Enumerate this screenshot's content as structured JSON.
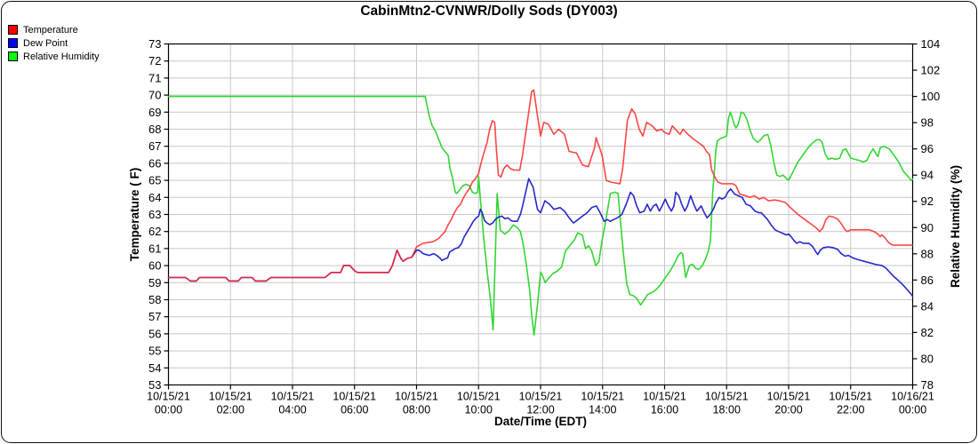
{
  "chart_data": {
    "type": "line",
    "title": "CabinMtn2-CVNWR/Dolly Sods (DY003)",
    "x_axis": {
      "label": "Date/Time (EDT)",
      "unit": "hours_from_start",
      "range": [
        0,
        24
      ],
      "tick_interval_hours": 2,
      "tick_labels": [
        {
          "date": "10/15/21",
          "time": "00:00"
        },
        {
          "date": "10/15/21",
          "time": "02:00"
        },
        {
          "date": "10/15/21",
          "time": "04:00"
        },
        {
          "date": "10/15/21",
          "time": "06:00"
        },
        {
          "date": "10/15/21",
          "time": "08:00"
        },
        {
          "date": "10/15/21",
          "time": "10:00"
        },
        {
          "date": "10/15/21",
          "time": "12:00"
        },
        {
          "date": "10/15/21",
          "time": "14:00"
        },
        {
          "date": "10/15/21",
          "time": "16:00"
        },
        {
          "date": "10/15/21",
          "time": "18:00"
        },
        {
          "date": "10/15/21",
          "time": "20:00"
        },
        {
          "date": "10/15/21",
          "time": "22:00"
        },
        {
          "date": "10/16/21",
          "time": "00:00"
        }
      ]
    },
    "y_left": {
      "label": "Temperature ( F)",
      "range": [
        53,
        73
      ],
      "tick_step": 1,
      "grid": true
    },
    "y_right": {
      "label": "Relative Humidity (%)",
      "range": [
        78,
        104
      ],
      "tick_step": 2,
      "grid": false
    },
    "grid_color": "#c8c8c8",
    "series": [
      {
        "name": "Relative Humidity",
        "axis": "right",
        "color": "#33d633",
        "legend_color": "#00ff00",
        "x": [
          0,
          8.28,
          8.4,
          8.5,
          8.62,
          8.72,
          8.82,
          8.95,
          9.02,
          9.08,
          9.15,
          9.25,
          9.3,
          9.4,
          9.5,
          9.6,
          9.7,
          9.8,
          9.9,
          9.97,
          10.0,
          10.08,
          10.17,
          10.28,
          10.38,
          10.47,
          10.6,
          10.7,
          10.85,
          11.0,
          11.12,
          11.25,
          11.35,
          11.45,
          11.55,
          11.65,
          11.72,
          11.79,
          11.9,
          12.0,
          12.07,
          12.15,
          12.28,
          12.4,
          12.55,
          12.68,
          12.8,
          12.9,
          13.0,
          13.1,
          13.2,
          13.35,
          13.45,
          13.55,
          13.65,
          13.78,
          13.88,
          13.98,
          14.08,
          14.18,
          14.25,
          14.4,
          14.5,
          14.58,
          14.68,
          14.78,
          14.88,
          15.0,
          15.1,
          15.23,
          15.35,
          15.45,
          15.55,
          15.7,
          15.85,
          16.0,
          16.18,
          16.3,
          16.45,
          16.53,
          16.58,
          16.68,
          16.8,
          16.9,
          17.0,
          17.1,
          17.22,
          17.32,
          17.42,
          17.48,
          17.55,
          17.6,
          17.65,
          17.7,
          17.8,
          17.92,
          18.0,
          18.06,
          18.12,
          18.18,
          18.24,
          18.3,
          18.36,
          18.42,
          18.47,
          18.56,
          18.66,
          18.76,
          18.86,
          19.0,
          19.1,
          19.2,
          19.33,
          19.42,
          19.52,
          19.62,
          19.72,
          19.82,
          19.9,
          20.0,
          20.15,
          20.3,
          20.45,
          20.6,
          20.75,
          20.9,
          21.0,
          21.08,
          21.18,
          21.28,
          21.38,
          21.52,
          21.65,
          21.75,
          21.85,
          22.0,
          22.15,
          22.3,
          22.4,
          22.52,
          22.62,
          22.72,
          22.8,
          22.88,
          22.96,
          23.06,
          23.15,
          23.25,
          23.4,
          23.55,
          23.7,
          23.85,
          23.95,
          24.0
        ],
        "y": [
          100,
          100,
          98.6,
          97.8,
          97.3,
          96.7,
          96.1,
          95.7,
          95.5,
          94.5,
          93.9,
          92.7,
          92.6,
          92.9,
          93.2,
          93.3,
          93.2,
          92.7,
          92.6,
          92.7,
          93.9,
          91.6,
          89.1,
          86.6,
          84.6,
          82.2,
          92.6,
          89.8,
          89.5,
          89.8,
          90.2,
          90.0,
          89.7,
          88.6,
          87.0,
          85.2,
          83.2,
          81.8,
          84.1,
          86.6,
          86.3,
          85.8,
          86.2,
          86.5,
          86.7,
          87.0,
          88.2,
          88.5,
          88.8,
          89.1,
          89.6,
          89.4,
          88.4,
          88.6,
          88.2,
          87.1,
          87.4,
          89.0,
          90.2,
          91.6,
          92.6,
          92.7,
          92.6,
          90.4,
          87.8,
          85.7,
          84.9,
          84.8,
          84.6,
          84.1,
          84.5,
          84.9,
          85.0,
          85.2,
          85.6,
          86.1,
          86.7,
          87.2,
          87.9,
          88.1,
          88.0,
          86.2,
          87.1,
          87.2,
          86.9,
          86.8,
          87.1,
          87.6,
          88.3,
          89.0,
          92.7,
          94.1,
          95.8,
          96.6,
          96.8,
          96.9,
          97.0,
          98.3,
          98.8,
          98.4,
          97.9,
          97.6,
          97.8,
          98.3,
          98.8,
          98.7,
          98.2,
          97.4,
          96.8,
          96.5,
          96.7,
          97.0,
          97.1,
          96.3,
          95.0,
          94.0,
          93.9,
          94.0,
          93.8,
          93.6,
          94.3,
          95.0,
          95.5,
          96.0,
          96.4,
          96.7,
          96.7,
          96.5,
          95.6,
          95.2,
          95.3,
          95.2,
          95.3,
          95.9,
          96.0,
          95.3,
          95.2,
          95.1,
          95.0,
          95.1,
          95.6,
          96.0,
          95.7,
          95.4,
          96.1,
          96.2,
          96.1,
          96.0,
          95.5,
          95.0,
          94.3,
          93.9,
          93.6,
          93.7
        ]
      },
      {
        "name": "Dew Point",
        "axis": "left",
        "color": "#2828cc",
        "legend_color": "#0000ff",
        "x": [
          0,
          0.55,
          0.7,
          0.9,
          1.0,
          1.85,
          1.95,
          2.25,
          2.35,
          2.7,
          2.8,
          3.15,
          3.3,
          5.05,
          5.25,
          5.55,
          5.65,
          5.85,
          6.0,
          6.1,
          7.1,
          7.22,
          7.37,
          7.5,
          7.57,
          7.68,
          7.85,
          8.0,
          8.08,
          8.22,
          8.4,
          8.55,
          8.65,
          8.75,
          8.82,
          8.92,
          9.0,
          9.07,
          9.16,
          9.25,
          9.35,
          9.45,
          9.54,
          9.64,
          9.74,
          9.83,
          9.93,
          10.0,
          10.06,
          10.12,
          10.19,
          10.27,
          10.36,
          10.46,
          10.56,
          10.65,
          10.75,
          10.85,
          10.95,
          11.04,
          11.12,
          11.25,
          11.35,
          11.42,
          11.62,
          11.76,
          11.9,
          12.0,
          12.14,
          12.29,
          12.43,
          12.63,
          12.77,
          12.92,
          13.06,
          13.21,
          13.35,
          13.5,
          13.65,
          13.8,
          13.95,
          14.05,
          14.15,
          14.25,
          14.35,
          14.48,
          14.62,
          14.76,
          14.9,
          15.0,
          15.1,
          15.2,
          15.34,
          15.44,
          15.54,
          15.64,
          15.73,
          15.83,
          15.92,
          16.02,
          16.12,
          16.22,
          16.3,
          16.36,
          16.46,
          16.55,
          16.65,
          16.74,
          16.84,
          16.94,
          17.04,
          17.18,
          17.28,
          17.37,
          17.47,
          17.57,
          17.66,
          17.76,
          17.85,
          17.95,
          18.04,
          18.13,
          18.26,
          18.37,
          18.5,
          18.63,
          18.77,
          18.91,
          19.05,
          19.12,
          19.22,
          19.32,
          19.43,
          19.56,
          19.67,
          19.8,
          19.92,
          20.0,
          20.08,
          20.16,
          20.26,
          20.36,
          20.48,
          20.66,
          20.78,
          20.88,
          20.94,
          21.02,
          21.12,
          21.28,
          21.44,
          21.58,
          21.7,
          21.82,
          21.92,
          22.08,
          22.24,
          22.44,
          22.64,
          22.84,
          23.02,
          23.14,
          23.24,
          23.37,
          23.52,
          23.67,
          23.82,
          23.94,
          24.0
        ],
        "y": [
          59.3,
          59.3,
          59.1,
          59.1,
          59.3,
          59.3,
          59.1,
          59.1,
          59.3,
          59.3,
          59.1,
          59.1,
          59.3,
          59.3,
          59.6,
          59.6,
          60.0,
          60.0,
          59.7,
          59.6,
          59.6,
          60.0,
          60.9,
          60.4,
          60.25,
          60.4,
          60.5,
          60.9,
          60.9,
          60.7,
          60.6,
          60.7,
          60.6,
          60.45,
          60.3,
          60.4,
          60.45,
          60.8,
          60.9,
          61.0,
          61.05,
          61.3,
          61.7,
          62.0,
          62.3,
          62.6,
          62.8,
          62.9,
          63.3,
          63.1,
          62.65,
          62.5,
          62.4,
          62.5,
          62.75,
          62.85,
          62.9,
          62.75,
          62.8,
          62.65,
          62.6,
          62.6,
          63.0,
          63.5,
          65.1,
          64.6,
          63.3,
          63.1,
          63.8,
          63.6,
          63.3,
          63.4,
          63.2,
          62.8,
          62.5,
          62.7,
          62.9,
          63.1,
          63.4,
          63.5,
          63.0,
          62.6,
          62.7,
          62.6,
          62.7,
          62.8,
          63.0,
          63.6,
          64.3,
          64.1,
          63.5,
          63.1,
          63.2,
          63.6,
          63.2,
          63.5,
          63.6,
          63.2,
          63.5,
          63.9,
          63.5,
          63.2,
          63.5,
          64.3,
          64.1,
          63.6,
          63.2,
          63.5,
          64.1,
          63.6,
          63.2,
          63.5,
          63.1,
          62.8,
          63.0,
          63.3,
          63.7,
          64.0,
          63.9,
          64.0,
          64.3,
          64.5,
          64.2,
          64.1,
          64.0,
          63.6,
          63.5,
          63.2,
          63.1,
          63.1,
          62.9,
          62.7,
          62.4,
          62.1,
          62.0,
          61.9,
          61.8,
          61.85,
          61.7,
          61.5,
          61.3,
          61.4,
          61.3,
          61.3,
          61.1,
          60.8,
          60.65,
          60.9,
          61.05,
          61.1,
          61.05,
          60.95,
          60.7,
          60.55,
          60.6,
          60.45,
          60.35,
          60.25,
          60.15,
          60.05,
          60.0,
          59.85,
          59.65,
          59.4,
          59.15,
          58.9,
          58.6,
          58.35,
          58.2
        ]
      },
      {
        "name": "Temperature",
        "axis": "left",
        "color": "#ff2626",
        "legend_color": "#ff0000",
        "opacity": 0.85,
        "x": [
          0,
          0.55,
          0.7,
          0.9,
          1.0,
          1.85,
          1.95,
          2.25,
          2.35,
          2.7,
          2.8,
          3.15,
          3.3,
          5.05,
          5.25,
          5.55,
          5.65,
          5.85,
          6.0,
          6.1,
          7.1,
          7.22,
          7.37,
          7.5,
          7.57,
          7.68,
          7.85,
          8.0,
          8.2,
          8.53,
          8.72,
          8.82,
          8.92,
          9.02,
          9.12,
          9.22,
          9.32,
          9.42,
          9.52,
          9.62,
          9.7,
          9.8,
          9.9,
          10.0,
          10.08,
          10.17,
          10.27,
          10.36,
          10.45,
          10.52,
          10.58,
          10.64,
          10.72,
          10.82,
          10.92,
          11.02,
          11.15,
          11.33,
          11.42,
          11.62,
          11.71,
          11.78,
          11.9,
          12.0,
          12.1,
          12.25,
          12.43,
          12.58,
          12.77,
          12.92,
          13.16,
          13.35,
          13.54,
          13.74,
          13.79,
          13.98,
          14.12,
          14.25,
          14.56,
          14.65,
          14.8,
          14.94,
          15.05,
          15.18,
          15.3,
          15.42,
          15.6,
          15.75,
          15.9,
          16.0,
          16.15,
          16.25,
          16.4,
          16.5,
          16.6,
          16.75,
          16.95,
          17.1,
          17.25,
          17.35,
          17.45,
          17.52,
          17.62,
          17.72,
          17.85,
          18.2,
          18.3,
          18.42,
          18.6,
          18.75,
          18.9,
          19.05,
          19.2,
          19.35,
          19.55,
          19.7,
          19.9,
          20.0,
          20.15,
          20.3,
          20.45,
          20.6,
          20.75,
          20.9,
          21.0,
          21.1,
          21.2,
          21.3,
          21.45,
          21.6,
          21.72,
          21.82,
          21.9,
          22.0,
          22.6,
          22.75,
          22.88,
          22.95,
          23.0,
          23.1,
          23.2,
          23.3,
          23.4,
          24.0
        ],
        "y": [
          59.3,
          59.3,
          59.1,
          59.1,
          59.3,
          59.3,
          59.1,
          59.1,
          59.3,
          59.3,
          59.1,
          59.1,
          59.3,
          59.3,
          59.6,
          59.6,
          60.0,
          60.0,
          59.7,
          59.6,
          59.6,
          60.0,
          60.9,
          60.4,
          60.25,
          60.4,
          60.5,
          61.1,
          61.3,
          61.4,
          61.6,
          61.8,
          62.0,
          62.4,
          62.7,
          63.1,
          63.4,
          63.6,
          64.0,
          64.3,
          64.5,
          64.9,
          65.1,
          65.4,
          66.0,
          66.6,
          67.2,
          68.0,
          68.5,
          68.4,
          66.7,
          65.3,
          65.2,
          65.7,
          65.9,
          65.7,
          65.6,
          65.6,
          66.5,
          69.0,
          70.2,
          70.3,
          68.8,
          67.6,
          68.4,
          68.3,
          67.7,
          68.0,
          67.7,
          66.7,
          66.6,
          65.9,
          65.8,
          66.9,
          67.5,
          66.5,
          65.0,
          64.9,
          64.8,
          65.7,
          68.5,
          69.2,
          68.9,
          68.0,
          67.6,
          68.4,
          68.2,
          67.9,
          68.0,
          67.8,
          67.7,
          68.2,
          67.9,
          67.7,
          68.0,
          67.7,
          67.4,
          67.2,
          67.0,
          66.7,
          66.5,
          65.6,
          65.2,
          64.9,
          64.8,
          64.8,
          64.7,
          64.2,
          64.1,
          64.0,
          64.1,
          63.9,
          64.0,
          63.8,
          63.85,
          63.8,
          63.7,
          63.5,
          63.25,
          63.0,
          62.8,
          62.6,
          62.4,
          62.2,
          62.0,
          62.2,
          62.7,
          62.9,
          62.85,
          62.7,
          62.4,
          62.1,
          62.0,
          62.1,
          62.1,
          62.0,
          61.85,
          61.7,
          61.8,
          61.65,
          61.4,
          61.25,
          61.2,
          61.2
        ]
      }
    ],
    "legend": {
      "position": "top-left",
      "order": [
        "Temperature",
        "Dew Point",
        "Relative Humidity"
      ]
    }
  }
}
